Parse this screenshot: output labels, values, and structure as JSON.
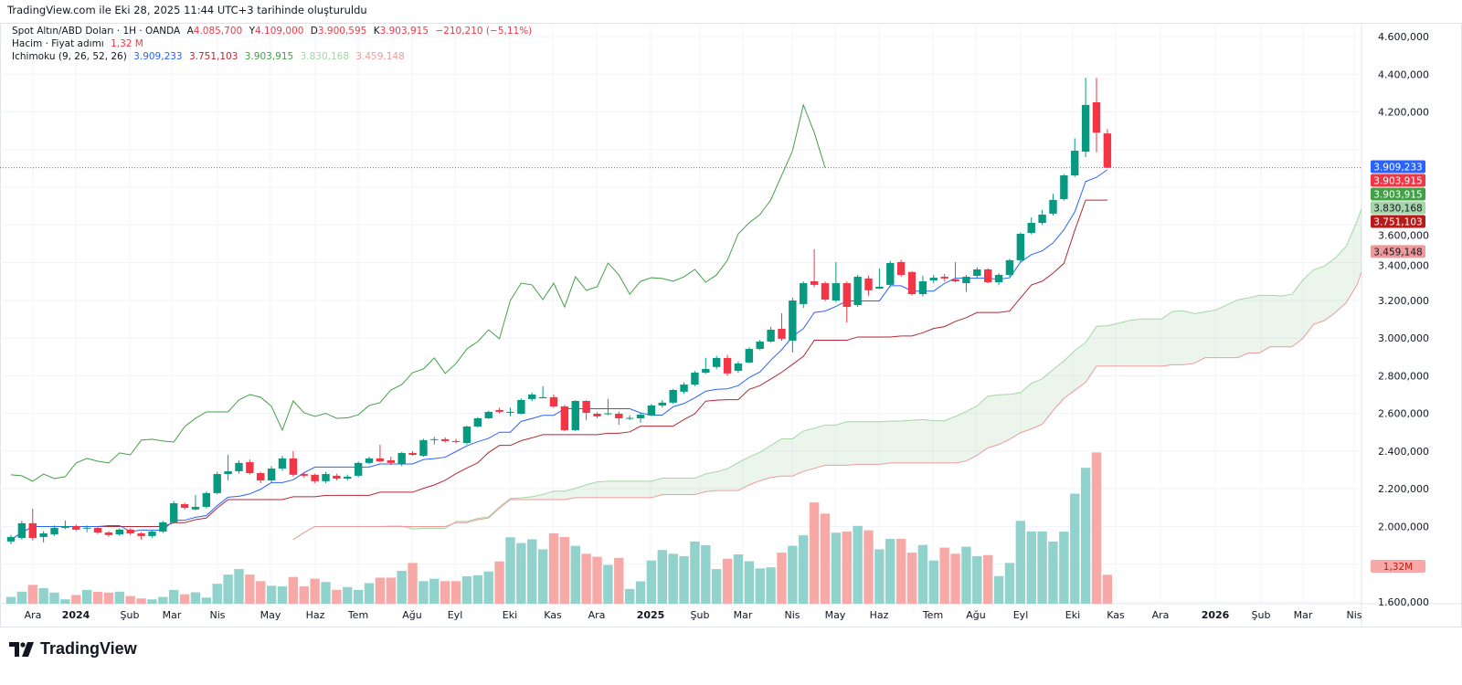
{
  "caption": "TradingView.com ile Eki 28, 2025 11:44 UTC+3 tarihinde oluşturuldu",
  "legend": {
    "symbol": "Spot Altın/ABD Doları · 1H · OANDA",
    "open_label": "A",
    "open": "4.085,700",
    "high_label": "Y",
    "high": "4.109,000",
    "low_label": "D",
    "low": "3.900,595",
    "close_label": "K",
    "close": "3.903,915",
    "change": "−210,210 (−5,11%)",
    "volume_title": "Hacim · Fiyat adımı",
    "volume_value": "1,32 M",
    "ichimoku_title": "Ichimoku (9, 26, 52, 26)",
    "ichimoku_values": [
      "3.909,233",
      "3.751,103",
      "3.903,915",
      "3.830,168",
      "3.459,148"
    ]
  },
  "footer": {
    "brand": "TradingView"
  },
  "colors": {
    "up": "#089981",
    "down": "#f23645",
    "volume_up": "#92d2cc",
    "volume_down": "#f7a9a7",
    "tenkan": "#2962ff",
    "kijun": "#b22833",
    "chikou": "#43a047",
    "span_a": "#a5d6a7",
    "span_b": "#ef9a9a",
    "cloud": "rgba(67,160,71,0.10)"
  },
  "chart_data": {
    "type": "candlestick",
    "title": "Spot Altın/ABD Doları · 1H · OANDA",
    "ylim": [
      1600,
      4600
    ],
    "grid": true,
    "price_labels": [
      {
        "value": 4600,
        "text": "4.600,000"
      },
      {
        "value": 4400,
        "text": "4.400,000"
      },
      {
        "value": 4200,
        "text": "4.200,000"
      },
      {
        "value": 3600,
        "text": "3.600,000"
      },
      {
        "value": 3400,
        "text": "3.400,000"
      },
      {
        "value": 3200,
        "text": "3.200,000"
      },
      {
        "value": 3000,
        "text": "3.000,000"
      },
      {
        "value": 2800,
        "text": "2.800,000"
      },
      {
        "value": 2600,
        "text": "2.600,000"
      },
      {
        "value": 2400,
        "text": "2.400,000"
      },
      {
        "value": 2200,
        "text": "2.200,000"
      },
      {
        "value": 2000,
        "text": "2.000,000"
      },
      {
        "value": 1600,
        "text": "1.600,000"
      }
    ],
    "time_labels": [
      "Ara",
      "2024",
      "Şub",
      "Mar",
      "Nis",
      "May",
      "Haz",
      "Tem",
      "Ağu",
      "Eyl",
      "Eki",
      "Kas",
      "Ara",
      "2025",
      "Şub",
      "Mar",
      "Nis",
      "May",
      "Haz",
      "Tem",
      "Ağu",
      "Eyl",
      "Eki",
      "Kas",
      "Ara",
      "2026",
      "Şub",
      "Mar",
      "Nis"
    ],
    "badges": [
      {
        "text": "3.909,233",
        "value": 3909.233,
        "bg": "#2962ff",
        "fg": "#ffffff"
      },
      {
        "text": "3.903,915",
        "value": 3903.915,
        "bg": "#f23645",
        "fg": "#ffffff"
      },
      {
        "text": "3.903,915",
        "value": 3903.915,
        "bg": "#43a047",
        "fg": "#ffffff"
      },
      {
        "text": "3.830,168",
        "value": 3830.168,
        "bg": "#a5d6a7",
        "fg": "#131722"
      },
      {
        "text": "3.751,103",
        "value": 3751.103,
        "bg": "#b71c1c",
        "fg": "#ffffff"
      },
      {
        "text": "3.459,148",
        "value": 3459.148,
        "bg": "#ef9a9a",
        "fg": "#131722"
      }
    ],
    "volume_badge": {
      "text": "1,32M",
      "bg": "#f7a9a7",
      "fg": "#b71c1c"
    },
    "last_close": 3903.915,
    "ichimoku_params": [
      9,
      26,
      52,
      26
    ],
    "candles_ohlc": [
      [
        1920,
        1955,
        1905,
        1944
      ],
      [
        1939,
        2030,
        1930,
        2017
      ],
      [
        2017,
        2094,
        1925,
        1939
      ],
      [
        1944,
        1975,
        1915,
        1963
      ],
      [
        1958,
        2005,
        1950,
        1992
      ],
      [
        1992,
        2031,
        1985,
        2002
      ],
      [
        2002,
        2010,
        1975,
        1983
      ],
      [
        1990,
        2005,
        1970,
        1993
      ],
      [
        1992,
        2000,
        1960,
        1968
      ],
      [
        1968,
        1975,
        1945,
        1954
      ],
      [
        1958,
        1990,
        1950,
        1983
      ],
      [
        1983,
        1990,
        1955,
        1963
      ],
      [
        1963,
        1970,
        1930,
        1949
      ],
      [
        1949,
        1980,
        1940,
        1973
      ],
      [
        1973,
        2030,
        1965,
        2022
      ],
      [
        2022,
        2135,
        2015,
        2123
      ],
      [
        2118,
        2125,
        2090,
        2099
      ],
      [
        2090,
        2167,
        2085,
        2104
      ],
      [
        2104,
        2185,
        2095,
        2177
      ],
      [
        2177,
        2290,
        2170,
        2278
      ],
      [
        2278,
        2380,
        2245,
        2293
      ],
      [
        2293,
        2350,
        2280,
        2337
      ],
      [
        2341,
        2355,
        2275,
        2283
      ],
      [
        2283,
        2290,
        2230,
        2244
      ],
      [
        2244,
        2320,
        2235,
        2307
      ],
      [
        2307,
        2375,
        2295,
        2361
      ],
      [
        2361,
        2400,
        2265,
        2274
      ],
      [
        2278,
        2290,
        2260,
        2269
      ],
      [
        2274,
        2280,
        2230,
        2240
      ],
      [
        2240,
        2290,
        2230,
        2278
      ],
      [
        2269,
        2280,
        2245,
        2254
      ],
      [
        2254,
        2275,
        2245,
        2264
      ],
      [
        2269,
        2345,
        2260,
        2337
      ],
      [
        2337,
        2370,
        2330,
        2361
      ],
      [
        2361,
        2433,
        2340,
        2346
      ],
      [
        2351,
        2370,
        2325,
        2337
      ],
      [
        2332,
        2395,
        2320,
        2390
      ],
      [
        2390,
        2400,
        2375,
        2380
      ],
      [
        2375,
        2465,
        2370,
        2458
      ],
      [
        2458,
        2475,
        2435,
        2463
      ],
      [
        2463,
        2472,
        2445,
        2453
      ],
      [
        2453,
        2465,
        2440,
        2448
      ],
      [
        2443,
        2535,
        2435,
        2530
      ],
      [
        2530,
        2580,
        2525,
        2574
      ],
      [
        2574,
        2615,
        2570,
        2608
      ],
      [
        2618,
        2630,
        2600,
        2608
      ],
      [
        2603,
        2630,
        2585,
        2608
      ],
      [
        2598,
        2680,
        2595,
        2671
      ],
      [
        2676,
        2710,
        2665,
        2700
      ],
      [
        2680,
        2744,
        2680,
        2686
      ],
      [
        2686,
        2700,
        2630,
        2637
      ],
      [
        2637,
        2645,
        2505,
        2511
      ],
      [
        2511,
        2670,
        2505,
        2666
      ],
      [
        2666,
        2670,
        2565,
        2603
      ],
      [
        2598,
        2605,
        2575,
        2584
      ],
      [
        2598,
        2676,
        2590,
        2600
      ],
      [
        2598,
        2610,
        2540,
        2574
      ],
      [
        2574,
        2590,
        2565,
        2576
      ],
      [
        2574,
        2605,
        2550,
        2593
      ],
      [
        2589,
        2650,
        2585,
        2642
      ],
      [
        2642,
        2670,
        2630,
        2657
      ],
      [
        2657,
        2730,
        2650,
        2724
      ],
      [
        2715,
        2765,
        2705,
        2753
      ],
      [
        2753,
        2825,
        2745,
        2816
      ],
      [
        2816,
        2895,
        2810,
        2836
      ],
      [
        2846,
        2905,
        2835,
        2894
      ],
      [
        2894,
        2910,
        2800,
        2812
      ],
      [
        2826,
        2875,
        2815,
        2865
      ],
      [
        2870,
        2950,
        2865,
        2942
      ],
      [
        2942,
        2990,
        2935,
        2981
      ],
      [
        2981,
        3060,
        2975,
        3044
      ],
      [
        3049,
        3131,
        2985,
        2996
      ],
      [
        2986,
        3215,
        2923,
        3199
      ],
      [
        3180,
        3300,
        3160,
        3291
      ],
      [
        3301,
        3471,
        3270,
        3282
      ],
      [
        3291,
        3300,
        3195,
        3204
      ],
      [
        3199,
        3403,
        3190,
        3291
      ],
      [
        3291,
        3300,
        3083,
        3165
      ],
      [
        3175,
        3335,
        3165,
        3325
      ],
      [
        3316,
        3330,
        3225,
        3253
      ],
      [
        3262,
        3369,
        3260,
        3272
      ],
      [
        3282,
        3410,
        3270,
        3398
      ],
      [
        3403,
        3415,
        3325,
        3335
      ],
      [
        3350,
        3355,
        3225,
        3233
      ],
      [
        3233,
        3330,
        3220,
        3301
      ],
      [
        3306,
        3335,
        3290,
        3320
      ],
      [
        3325,
        3340,
        3300,
        3316
      ],
      [
        3311,
        3403,
        3295,
        3301
      ],
      [
        3291,
        3335,
        3245,
        3325
      ],
      [
        3330,
        3375,
        3320,
        3364
      ],
      [
        3364,
        3370,
        3290,
        3296
      ],
      [
        3296,
        3345,
        3280,
        3335
      ],
      [
        3335,
        3420,
        3325,
        3413
      ],
      [
        3413,
        3560,
        3405,
        3553
      ],
      [
        3558,
        3640,
        3550,
        3611
      ],
      [
        3611,
        3680,
        3600,
        3655
      ],
      [
        3660,
        3765,
        3650,
        3733
      ],
      [
        3737,
        3870,
        3730,
        3863
      ],
      [
        3863,
        4060,
        3855,
        3994
      ],
      [
        3989,
        4381,
        3960,
        4237
      ],
      [
        4251,
        4381,
        3985,
        4090
      ],
      [
        4085.7,
        4109,
        3900.595,
        3903.915
      ]
    ],
    "volumes_m": [
      0.31,
      0.55,
      0.86,
      0.71,
      0.51,
      0.2,
      0.4,
      0.63,
      0.54,
      0.51,
      0.55,
      0.35,
      0.24,
      0.2,
      0.31,
      0.63,
      0.43,
      0.52,
      0.28,
      0.91,
      1.33,
      1.58,
      1.33,
      1.03,
      0.82,
      0.79,
      1.22,
      0.79,
      1.14,
      0.99,
      0.63,
      0.76,
      0.63,
      0.94,
      1.19,
      1.19,
      1.5,
      1.86,
      1.03,
      1.14,
      1.03,
      1.03,
      1.25,
      1.3,
      1.47,
      1.93,
      3.03,
      2.77,
      2.94,
      2.48,
      3.21,
      3.04,
      2.64,
      2.28,
      2.14,
      1.77,
      2.09,
      0.67,
      1.02,
      1.97,
      2.45,
      2.28,
      2.17,
      2.84,
      2.67,
      1.58,
      2.05,
      2.25,
      1.94,
      1.61,
      1.66,
      2.33,
      2.64,
      3.12,
      4.62,
      4.11,
      3.24,
      3.29,
      3.55,
      3.35,
      2.48,
      2.96,
      2.96,
      2.33,
      2.68,
      1.97,
      2.56,
      2.28,
      2.6,
      2.17,
      2.22,
      1.26,
      1.86,
      3.78,
      3.3,
      3.3,
      2.84,
      3.29,
      5.02,
      6.2,
      6.9,
      1.32
    ]
  }
}
